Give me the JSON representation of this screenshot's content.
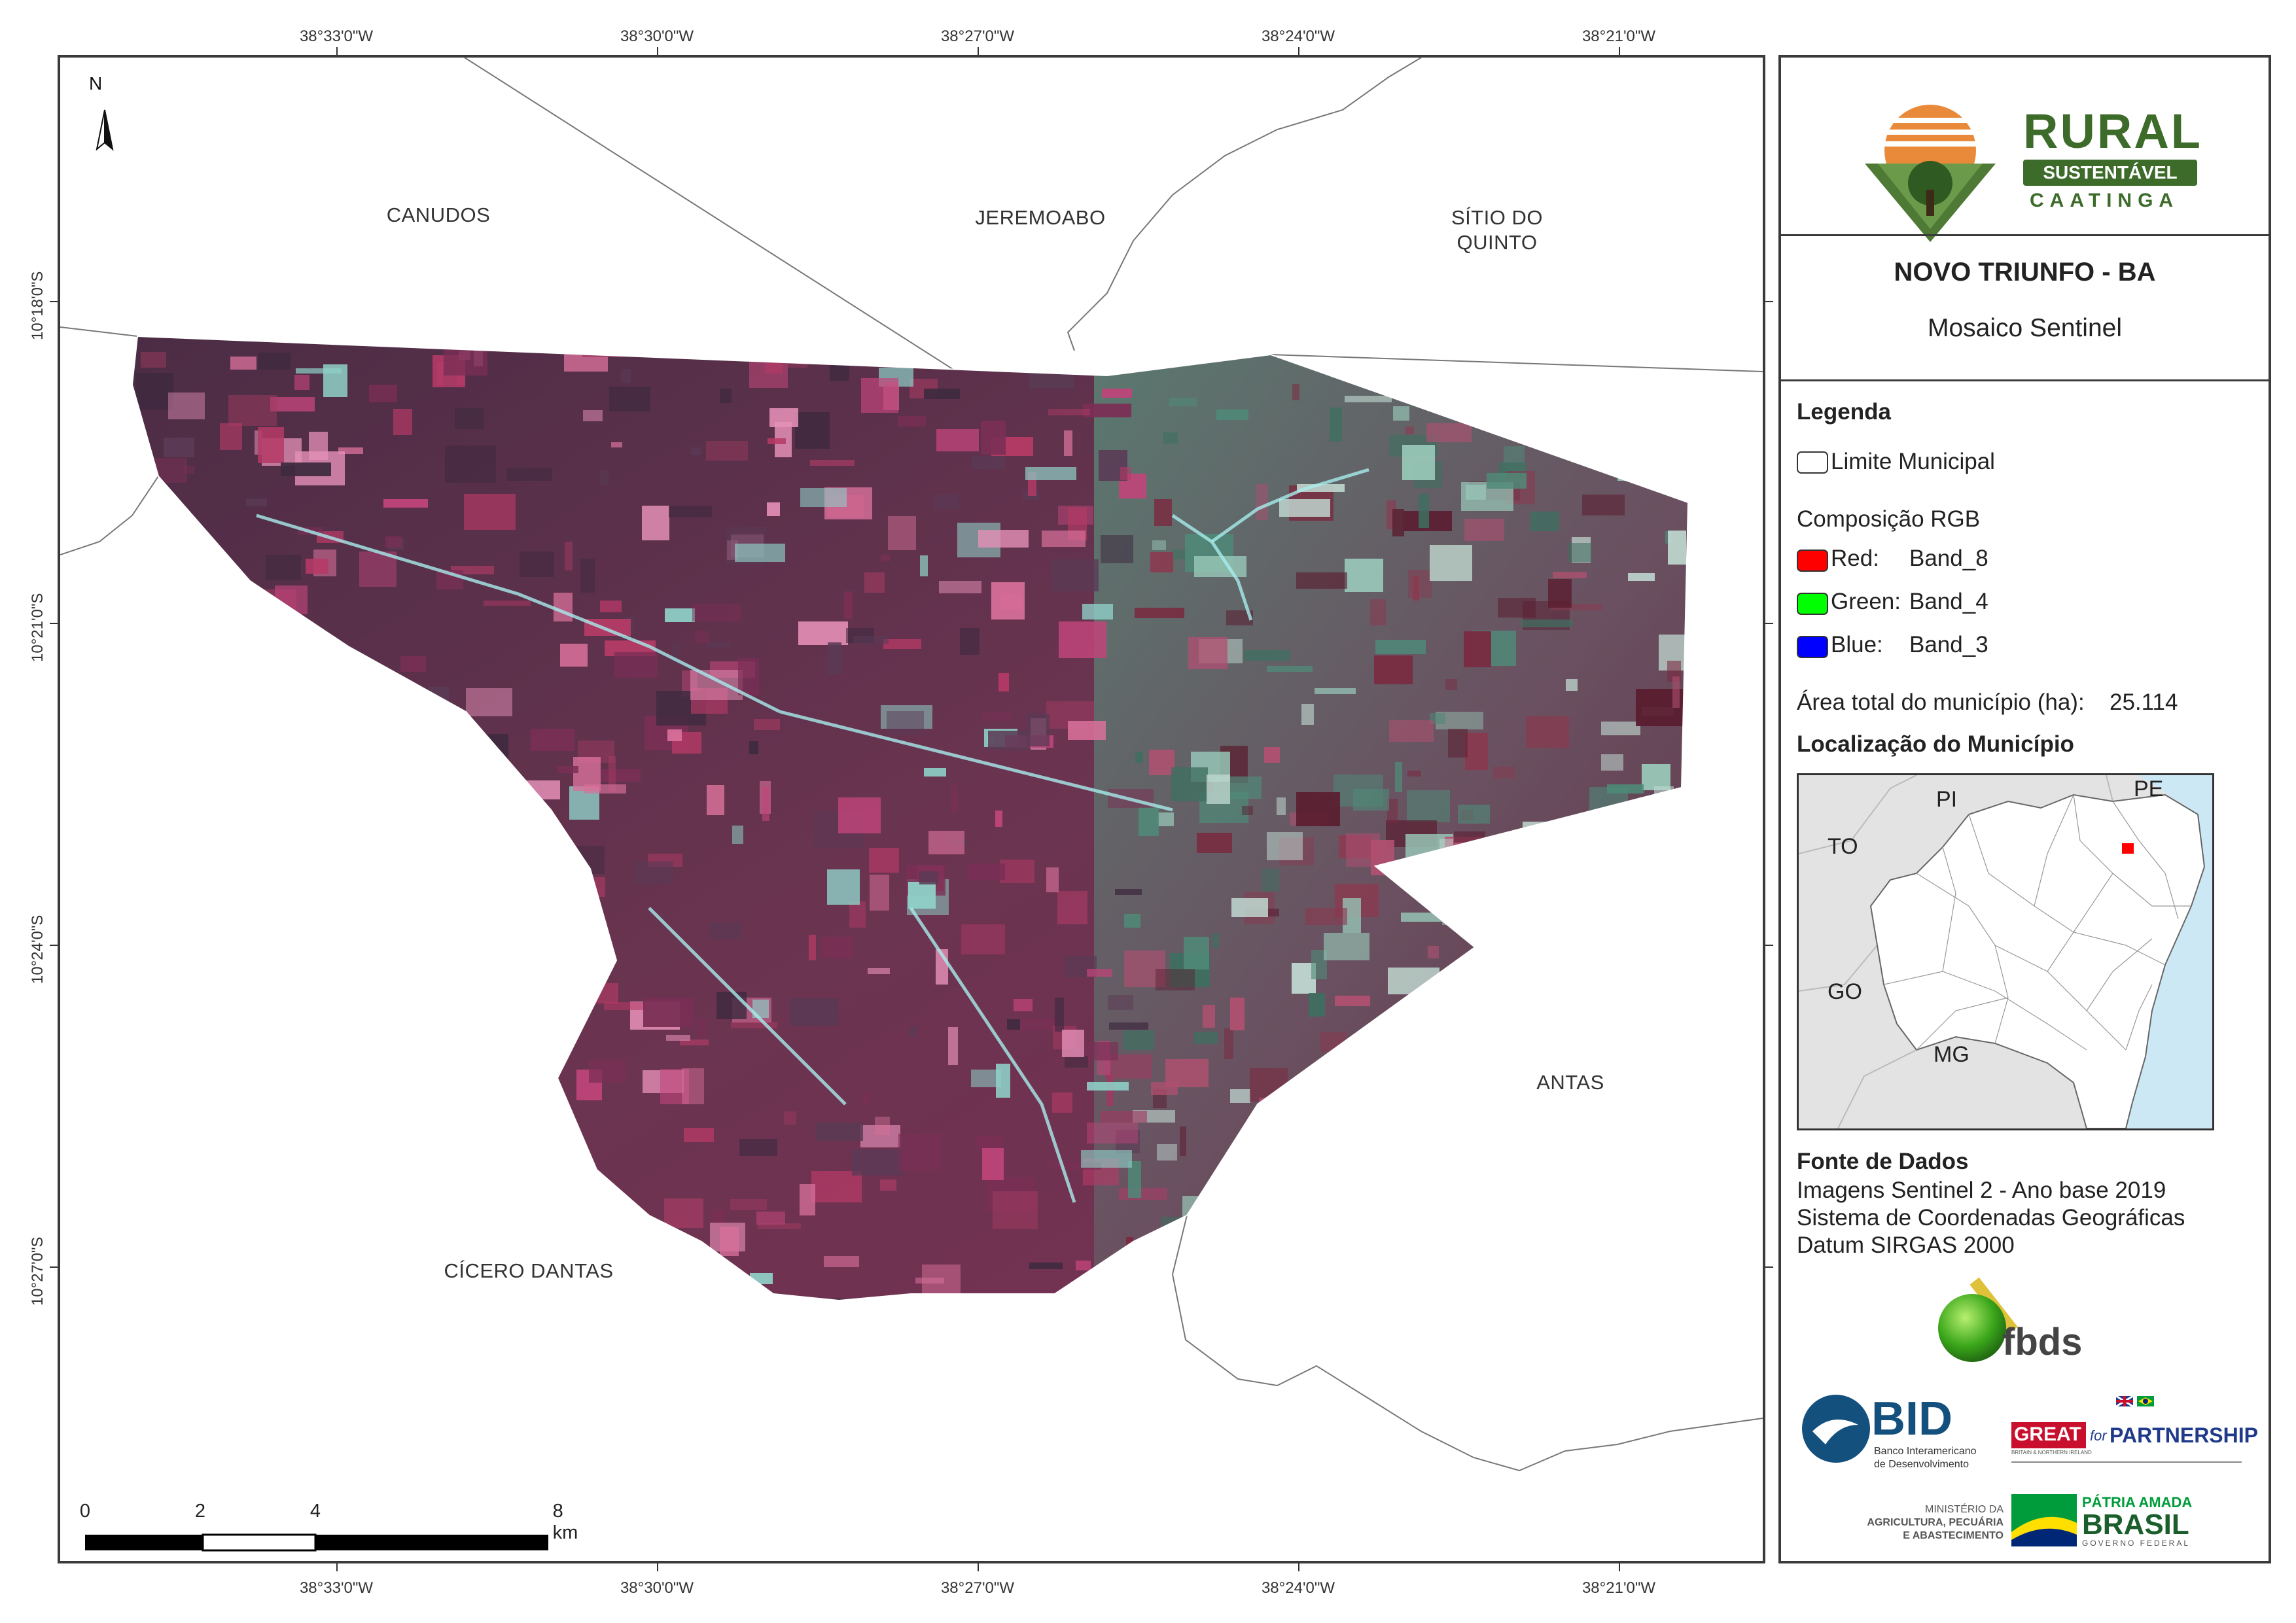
{
  "map": {
    "north_label": "N",
    "top_coords": [
      "38°33'0\"W",
      "38°30'0\"W",
      "38°27'0\"W",
      "38°24'0\"W",
      "38°21'0\"W"
    ],
    "bottom_coords": [
      "38°33'0\"W",
      "38°30'0\"W",
      "38°27'0\"W",
      "38°24'0\"W",
      "38°21'0\"W"
    ],
    "left_coords": [
      "10°18'0\"S",
      "10°21'0\"S",
      "10°24'0\"S",
      "10°27'0\"S"
    ],
    "neighbors": {
      "canudos": "CANUDOS",
      "jeremoabo": "JEREMOABO",
      "sitio_line1": "SÍTIO DO",
      "sitio_line2": "QUINTO",
      "antas": "ANTAS",
      "cicero": "CÍCERO DANTAS"
    },
    "scale": {
      "labels": [
        "0",
        "2",
        "4",
        "8 km"
      ]
    }
  },
  "panel": {
    "logo": {
      "word1": "RURAL",
      "word2": "SUSTENTÁVEL",
      "word3": "CAATINGA"
    },
    "title": "NOVO TRIUNFO - BA",
    "subtitle": "Mosaico Sentinel",
    "legend": {
      "heading": "Legenda",
      "limit_label": "Limite Municipal",
      "rgb_heading": "Composição RGB",
      "bands": [
        {
          "channel": "Red:",
          "band": "Band_8",
          "color": "#ff0000"
        },
        {
          "channel": "Green:",
          "band": "Band_4",
          "color": "#00ff00"
        },
        {
          "channel": "Blue:",
          "band": "Band_3",
          "color": "#0000ff"
        }
      ],
      "area_label": "Área total do município (ha):",
      "area_value": "25.114"
    },
    "location": {
      "heading": "Localização do Município",
      "states": {
        "pi": "PI",
        "pe": "PE",
        "to": "TO",
        "go": "GO",
        "mg": "MG"
      },
      "ocean_color": "#cde8f5",
      "land_color": "#e3e3e3",
      "highlight_color": "#ff0000"
    },
    "sources": {
      "heading": "Fonte de Dados",
      "lines": [
        "Imagens Sentinel 2 - Ano base 2019",
        "Sistema de Coordenadas Geográficas",
        "Datum SIRGAS 2000"
      ]
    },
    "partners": {
      "fbds": "fbds",
      "bid": "BID",
      "bid_sub1": "Banco Interamericano",
      "bid_sub2": "de Desenvolvimento",
      "great": "GREAT",
      "great_for": "for",
      "partnership": "PARTNERSHIP",
      "great_sub": "BRITAIN & NORTHERN IRELAND",
      "ministerio1": "MINISTÉRIO DA",
      "ministerio2": "AGRICULTURA, PECUÁRIA",
      "ministerio3": "E ABASTECIMENTO",
      "patria": "PÁTRIA AMADA",
      "brasil": "BRASIL",
      "gov": "GOVERNO FEDERAL"
    }
  }
}
